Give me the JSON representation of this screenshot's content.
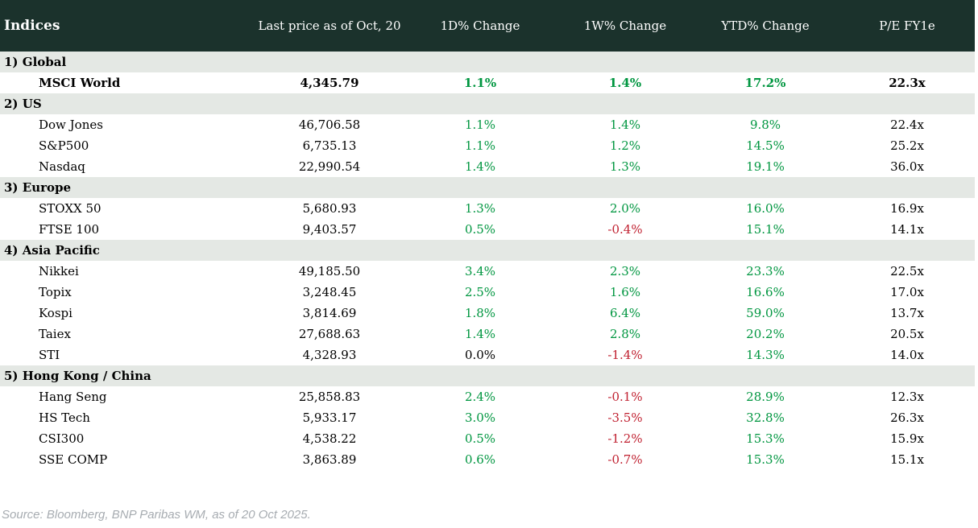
{
  "chart_data": {
    "type": "table",
    "title": "Indices",
    "columns": [
      "Indices",
      "Last price as of Oct, 20",
      "1D% Change",
      "1W% Change",
      "YTD% Change",
      "P/E FY1e"
    ],
    "sections": [
      {
        "label": "1) Global",
        "rows": [
          {
            "name": "MSCI World",
            "bold": true,
            "last_price": "4,345.79",
            "change_1d": "1.1%",
            "change_1d_dir": "up",
            "change_1w": "1.4%",
            "change_1w_dir": "up",
            "change_ytd": "17.2%",
            "change_ytd_dir": "up",
            "pe_fy1e": "22.3x"
          }
        ]
      },
      {
        "label": "2) US",
        "rows": [
          {
            "name": "Dow Jones",
            "bold": false,
            "last_price": "46,706.58",
            "change_1d": "1.1%",
            "change_1d_dir": "up",
            "change_1w": "1.4%",
            "change_1w_dir": "up",
            "change_ytd": "9.8%",
            "change_ytd_dir": "up",
            "pe_fy1e": "22.4x"
          },
          {
            "name": "S&P500",
            "bold": false,
            "last_price": "6,735.13",
            "change_1d": "1.1%",
            "change_1d_dir": "up",
            "change_1w": "1.2%",
            "change_1w_dir": "up",
            "change_ytd": "14.5%",
            "change_ytd_dir": "up",
            "pe_fy1e": "25.2x"
          },
          {
            "name": "Nasdaq",
            "bold": false,
            "last_price": "22,990.54",
            "change_1d": "1.4%",
            "change_1d_dir": "up",
            "change_1w": "1.3%",
            "change_1w_dir": "up",
            "change_ytd": "19.1%",
            "change_ytd_dir": "up",
            "pe_fy1e": "36.0x"
          }
        ]
      },
      {
        "label": "3) Europe",
        "rows": [
          {
            "name": "STOXX 50",
            "bold": false,
            "last_price": "5,680.93",
            "change_1d": "1.3%",
            "change_1d_dir": "up",
            "change_1w": "2.0%",
            "change_1w_dir": "up",
            "change_ytd": "16.0%",
            "change_ytd_dir": "up",
            "pe_fy1e": "16.9x"
          },
          {
            "name": "FTSE 100",
            "bold": false,
            "last_price": "9,403.57",
            "change_1d": "0.5%",
            "change_1d_dir": "up",
            "change_1w": "-0.4%",
            "change_1w_dir": "down",
            "change_ytd": "15.1%",
            "change_ytd_dir": "up",
            "pe_fy1e": "14.1x"
          }
        ]
      },
      {
        "label": "4) Asia Pacific",
        "rows": [
          {
            "name": "Nikkei",
            "bold": false,
            "last_price": "49,185.50",
            "change_1d": "3.4%",
            "change_1d_dir": "up",
            "change_1w": "2.3%",
            "change_1w_dir": "up",
            "change_ytd": "23.3%",
            "change_ytd_dir": "up",
            "pe_fy1e": "22.5x"
          },
          {
            "name": "Topix",
            "bold": false,
            "last_price": "3,248.45",
            "change_1d": "2.5%",
            "change_1d_dir": "up",
            "change_1w": "1.6%",
            "change_1w_dir": "up",
            "change_ytd": "16.6%",
            "change_ytd_dir": "up",
            "pe_fy1e": "17.0x"
          },
          {
            "name": "Kospi",
            "bold": false,
            "last_price": "3,814.69",
            "change_1d": "1.8%",
            "change_1d_dir": "up",
            "change_1w": "6.4%",
            "change_1w_dir": "up",
            "change_ytd": "59.0%",
            "change_ytd_dir": "up",
            "pe_fy1e": "13.7x"
          },
          {
            "name": "Taiex",
            "bold": false,
            "last_price": "27,688.63",
            "change_1d": "1.4%",
            "change_1d_dir": "up",
            "change_1w": "2.8%",
            "change_1w_dir": "up",
            "change_ytd": "20.2%",
            "change_ytd_dir": "up",
            "pe_fy1e": "20.5x"
          },
          {
            "name": "STI",
            "bold": false,
            "last_price": "4,328.93",
            "change_1d": "0.0%",
            "change_1d_dir": "flat",
            "change_1w": "-1.4%",
            "change_1w_dir": "down",
            "change_ytd": "14.3%",
            "change_ytd_dir": "up",
            "pe_fy1e": "14.0x"
          }
        ]
      },
      {
        "label": "5) Hong Kong / China",
        "rows": [
          {
            "name": "Hang Seng",
            "bold": false,
            "last_price": "25,858.83",
            "change_1d": "2.4%",
            "change_1d_dir": "up",
            "change_1w": "-0.1%",
            "change_1w_dir": "down",
            "change_ytd": "28.9%",
            "change_ytd_dir": "up",
            "pe_fy1e": "12.3x"
          },
          {
            "name": "HS Tech",
            "bold": false,
            "last_price": "5,933.17",
            "change_1d": "3.0%",
            "change_1d_dir": "up",
            "change_1w": "-3.5%",
            "change_1w_dir": "down",
            "change_ytd": "32.8%",
            "change_ytd_dir": "up",
            "pe_fy1e": "26.3x"
          },
          {
            "name": "CSI300",
            "bold": false,
            "last_price": "4,538.22",
            "change_1d": "0.5%",
            "change_1d_dir": "up",
            "change_1w": "-1.2%",
            "change_1w_dir": "down",
            "change_ytd": "15.3%",
            "change_ytd_dir": "up",
            "pe_fy1e": "15.9x"
          },
          {
            "name": "SSE COMP",
            "bold": false,
            "last_price": "3,863.89",
            "change_1d": "0.6%",
            "change_1d_dir": "up",
            "change_1w": "-0.7%",
            "change_1w_dir": "down",
            "change_ytd": "15.3%",
            "change_ytd_dir": "up",
            "pe_fy1e": "15.1x"
          }
        ]
      }
    ],
    "layout": {
      "positive_color_meaning": "gain",
      "negative_color_meaning": "loss",
      "neutral_color_meaning": "unchanged"
    }
  },
  "colors": {
    "header_bg": "#1b322c",
    "section_bg": "#e4e8e4",
    "positive": "#009640",
    "negative": "#c02030",
    "neutral": "#000000",
    "source_text": "#a7acb1"
  },
  "footer": {
    "source_text": "Source: Bloomberg, BNP Paribas WM, as of 20 Oct 2025."
  }
}
